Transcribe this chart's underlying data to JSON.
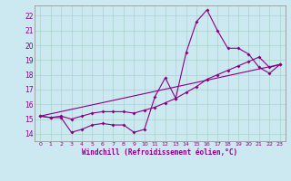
{
  "background_color": "#cce8f0",
  "grid_color": "#aad4cc",
  "line_color": "#880088",
  "xlabel": "Windchill (Refroidissement éolien,°C)",
  "xlim": [
    -0.5,
    23.5
  ],
  "ylim": [
    13.5,
    22.7
  ],
  "yticks": [
    14,
    15,
    16,
    17,
    18,
    19,
    20,
    21,
    22
  ],
  "xticks": [
    0,
    1,
    2,
    3,
    4,
    5,
    6,
    7,
    8,
    9,
    10,
    11,
    12,
    13,
    14,
    15,
    16,
    17,
    18,
    19,
    20,
    21,
    22,
    23
  ],
  "series1_x": [
    0,
    1,
    2,
    3,
    4,
    5,
    6,
    7,
    8,
    9,
    10,
    11,
    12,
    13,
    14,
    15,
    16,
    17,
    18,
    19,
    20,
    21,
    22,
    23
  ],
  "series1_y": [
    15.2,
    15.1,
    15.1,
    14.1,
    14.3,
    14.6,
    14.7,
    14.6,
    14.6,
    14.1,
    14.3,
    16.5,
    17.8,
    16.4,
    19.5,
    21.6,
    22.4,
    21.0,
    19.8,
    19.8,
    19.4,
    18.5,
    18.1,
    18.7
  ],
  "series2_x": [
    0,
    1,
    2,
    3,
    4,
    5,
    6,
    7,
    8,
    9,
    10,
    11,
    12,
    13,
    14,
    15,
    16,
    17,
    18,
    19,
    20,
    21,
    22,
    23
  ],
  "series2_y": [
    15.2,
    15.1,
    15.2,
    15.0,
    15.2,
    15.4,
    15.5,
    15.5,
    15.5,
    15.4,
    15.6,
    15.8,
    16.1,
    16.4,
    16.8,
    17.2,
    17.7,
    18.0,
    18.3,
    18.6,
    18.9,
    19.2,
    18.5,
    18.7
  ],
  "series3_x": [
    0,
    23
  ],
  "series3_y": [
    15.2,
    18.7
  ]
}
